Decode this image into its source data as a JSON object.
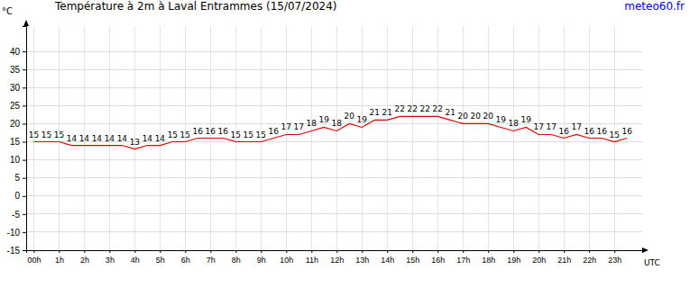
{
  "chart_data": {
    "type": "line",
    "title": "Température à 2m à Laval Entrammes (15/07/2024)",
    "source": "meteo60.fr",
    "y_label": "°C",
    "x_label": "UTC",
    "x": [
      0,
      0.5,
      1,
      1.5,
      2,
      2.5,
      3,
      3.5,
      4,
      4.5,
      5,
      5.5,
      6,
      6.5,
      7,
      7.5,
      8,
      8.5,
      9,
      9.5,
      10,
      10.5,
      11,
      11.5,
      12,
      12.5,
      13,
      13.5,
      14,
      14.5,
      15,
      15.5,
      16,
      16.5,
      17,
      17.5,
      18,
      18.5,
      19,
      19.5,
      20,
      20.5,
      21,
      21.5,
      22,
      22.5,
      23,
      23.5
    ],
    "values": [
      15,
      15,
      15,
      14,
      14,
      14,
      14,
      14,
      13,
      14,
      14,
      15,
      15,
      16,
      16,
      16,
      15,
      15,
      15,
      16,
      17,
      17,
      18,
      19,
      18,
      20,
      19,
      21,
      21,
      22,
      22,
      22,
      22,
      21,
      20,
      20,
      20,
      19,
      18,
      19,
      17,
      17,
      16,
      17,
      16,
      16,
      15,
      16
    ],
    "color": "#e00000",
    "data_labels": true,
    "grid": true,
    "xlim": [
      -0.3,
      24.1
    ],
    "xticks": [
      {
        "value": 0,
        "label": "00h"
      },
      {
        "value": 1,
        "label": "1h"
      },
      {
        "value": 2,
        "label": "2h"
      },
      {
        "value": 3,
        "label": "3h"
      },
      {
        "value": 4,
        "label": "4h"
      },
      {
        "value": 5,
        "label": "5h"
      },
      {
        "value": 6,
        "label": "6h"
      },
      {
        "value": 7,
        "label": "7h"
      },
      {
        "value": 8,
        "label": "8h"
      },
      {
        "value": 9,
        "label": "9h"
      },
      {
        "value": 10,
        "label": "10h"
      },
      {
        "value": 11,
        "label": "11h"
      },
      {
        "value": 12,
        "label": "12h"
      },
      {
        "value": 13,
        "label": "13h"
      },
      {
        "value": 14,
        "label": "14h"
      },
      {
        "value": 15,
        "label": "15h"
      },
      {
        "value": 16,
        "label": "16h"
      },
      {
        "value": 17,
        "label": "17h"
      },
      {
        "value": 18,
        "label": "18h"
      },
      {
        "value": 19,
        "label": "19h"
      },
      {
        "value": 20,
        "label": "20h"
      },
      {
        "value": 21,
        "label": "21h"
      },
      {
        "value": 22,
        "label": "22h"
      },
      {
        "value": 23,
        "label": "23h"
      }
    ],
    "ylim": [
      -15,
      47
    ],
    "yticks": [
      -15,
      -10,
      -5,
      0,
      5,
      10,
      15,
      20,
      25,
      30,
      35,
      40
    ]
  }
}
